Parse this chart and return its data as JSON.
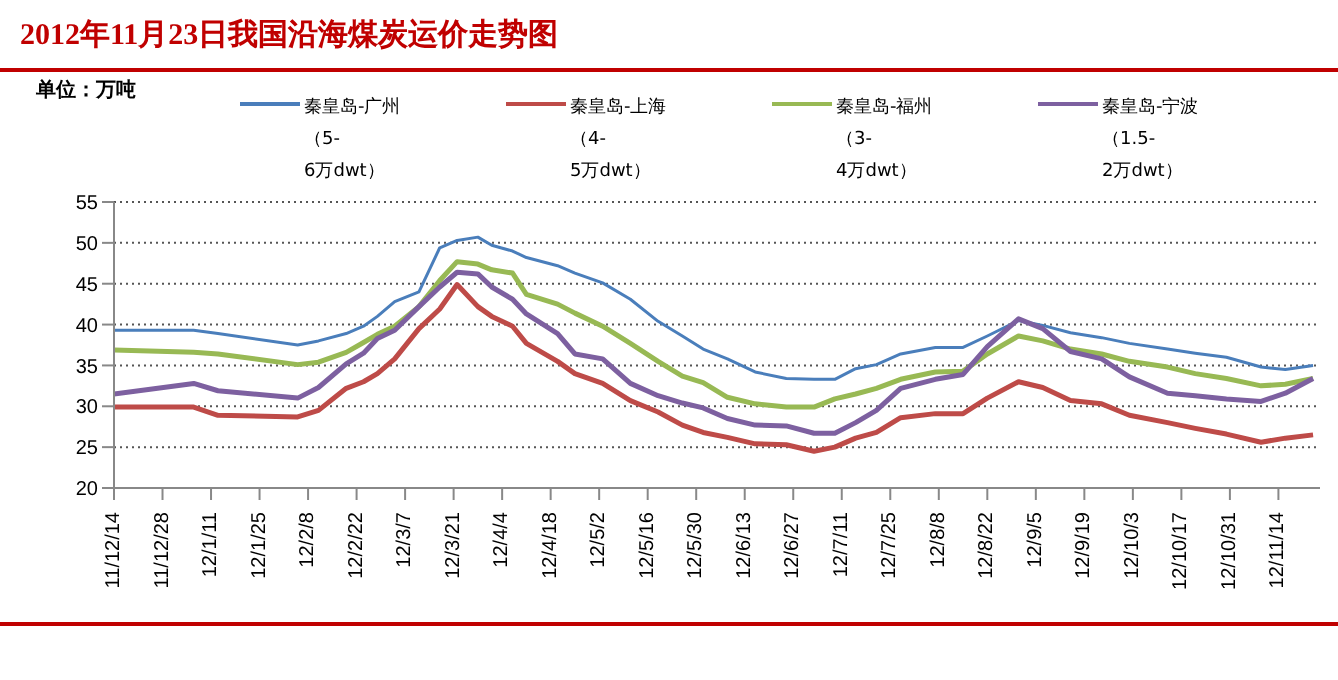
{
  "chart_data": {
    "type": "line",
    "title": "2012年11月23日我国沿海煤炭运价走势图",
    "ylabel": "单位：万吨",
    "x": [
      "2011-12-14",
      "2012-01-06",
      "2012-01-13",
      "2012-02-05",
      "2012-02-11",
      "2012-02-19",
      "2012-02-24",
      "2012-02-28",
      "2012-03-04",
      "2012-03-11",
      "2012-03-17",
      "2012-03-22",
      "2012-03-28",
      "2012-04-01",
      "2012-04-07",
      "2012-04-11",
      "2012-04-20",
      "2012-04-25",
      "2012-05-03",
      "2012-05-11",
      "2012-05-19",
      "2012-05-26",
      "2012-06-01",
      "2012-06-08",
      "2012-06-16",
      "2012-06-25",
      "2012-07-03",
      "2012-07-09",
      "2012-07-15",
      "2012-07-21",
      "2012-07-28",
      "2012-08-07",
      "2012-08-15",
      "2012-08-22",
      "2012-08-31",
      "2012-09-07",
      "2012-09-15",
      "2012-09-24",
      "2012-10-02",
      "2012-10-13",
      "2012-10-21",
      "2012-10-30",
      "2012-11-09",
      "2012-11-16",
      "2012-11-24"
    ],
    "series": [
      {
        "name": "秦皇岛-广州（5-6万dwt）",
        "color": "#4a7ebb",
        "values": [
          39.3,
          39.3,
          38.9,
          37.5,
          38.0,
          38.9,
          39.8,
          41.0,
          42.8,
          44.0,
          49.4,
          50.3,
          50.7,
          49.7,
          49.0,
          48.2,
          47.2,
          46.3,
          45.1,
          43.1,
          40.4,
          38.6,
          37.0,
          35.8,
          34.2,
          33.4,
          33.3,
          33.3,
          34.6,
          35.1,
          36.4,
          37.2,
          37.2,
          38.6,
          40.5,
          39.9,
          39.0,
          38.4,
          37.7,
          37.0,
          36.5,
          36.0,
          34.8,
          34.5,
          35.0
        ]
      },
      {
        "name": "秦皇岛-上海（4-5万dwt）",
        "color": "#be4b48",
        "values": [
          29.9,
          29.9,
          28.9,
          28.7,
          29.5,
          32.2,
          33.0,
          34.0,
          35.8,
          39.5,
          41.9,
          44.9,
          42.2,
          41.0,
          39.8,
          37.7,
          35.5,
          34.0,
          32.8,
          30.7,
          29.3,
          27.7,
          26.8,
          26.2,
          25.4,
          25.3,
          24.5,
          25.0,
          26.1,
          26.8,
          28.6,
          29.1,
          29.1,
          31.0,
          33.0,
          32.3,
          30.7,
          30.3,
          28.9,
          28.0,
          27.3,
          26.6,
          25.6,
          26.1,
          26.5
        ]
      },
      {
        "name": "秦皇岛-福州（3-4万dwt）",
        "color": "#98b954",
        "values": [
          36.9,
          36.6,
          36.4,
          35.1,
          35.4,
          36.6,
          37.8,
          38.8,
          39.8,
          42.2,
          45.4,
          47.7,
          47.4,
          46.7,
          46.3,
          43.7,
          42.5,
          41.4,
          39.8,
          37.7,
          35.5,
          33.7,
          32.9,
          31.1,
          30.3,
          29.9,
          29.9,
          30.9,
          31.5,
          32.2,
          33.3,
          34.2,
          34.3,
          36.4,
          38.6,
          38.0,
          37.0,
          36.4,
          35.5,
          34.8,
          34.0,
          33.4,
          32.5,
          32.7,
          33.4
        ]
      },
      {
        "name": "秦皇岛-宁波（1.5-2万dwt）",
        "color": "#7d60a0",
        "values": [
          31.5,
          32.8,
          31.9,
          31.0,
          32.3,
          35.2,
          36.5,
          38.3,
          39.3,
          42.2,
          44.6,
          46.4,
          46.2,
          44.6,
          43.1,
          41.3,
          38.9,
          36.4,
          35.8,
          32.8,
          31.3,
          30.4,
          29.8,
          28.5,
          27.7,
          27.6,
          26.7,
          26.7,
          28.0,
          29.5,
          32.2,
          33.3,
          33.9,
          37.3,
          40.7,
          39.5,
          36.7,
          35.8,
          33.6,
          31.6,
          31.3,
          30.9,
          30.6,
          31.6,
          33.4
        ]
      }
    ],
    "xlim": [
      "2011-12-14",
      "2012-11-26"
    ],
    "xticks": [
      {
        "value": "2011-12-14",
        "label": "11/12/14"
      },
      {
        "value": "2011-12-28",
        "label": "11/12/28"
      },
      {
        "value": "2012-01-11",
        "label": "12/1/11"
      },
      {
        "value": "2012-01-25",
        "label": "12/1/25"
      },
      {
        "value": "2012-02-08",
        "label": "12/2/8"
      },
      {
        "value": "2012-02-22",
        "label": "12/2/22"
      },
      {
        "value": "2012-03-07",
        "label": "12/3/7"
      },
      {
        "value": "2012-03-21",
        "label": "12/3/21"
      },
      {
        "value": "2012-04-04",
        "label": "12/4/4"
      },
      {
        "value": "2012-04-18",
        "label": "12/4/18"
      },
      {
        "value": "2012-05-02",
        "label": "12/5/2"
      },
      {
        "value": "2012-05-16",
        "label": "12/5/16"
      },
      {
        "value": "2012-05-30",
        "label": "12/5/30"
      },
      {
        "value": "2012-06-13",
        "label": "12/6/13"
      },
      {
        "value": "2012-06-27",
        "label": "12/6/27"
      },
      {
        "value": "2012-07-11",
        "label": "12/7/11"
      },
      {
        "value": "2012-07-25",
        "label": "12/7/25"
      },
      {
        "value": "2012-08-08",
        "label": "12/8/8"
      },
      {
        "value": "2012-08-22",
        "label": "12/8/22"
      },
      {
        "value": "2012-09-05",
        "label": "12/9/5"
      },
      {
        "value": "2012-09-19",
        "label": "12/9/19"
      },
      {
        "value": "2012-10-03",
        "label": "12/10/3"
      },
      {
        "value": "2012-10-17",
        "label": "12/10/17"
      },
      {
        "value": "2012-10-31",
        "label": "12/10/31"
      },
      {
        "value": "2012-11-14",
        "label": "12/11/14"
      }
    ],
    "ylim": [
      20,
      55
    ],
    "yticks": [
      20,
      25,
      30,
      35,
      40,
      45,
      50,
      55
    ],
    "grid": "y",
    "legend": "top",
    "marker": "none",
    "line_style": "solid"
  }
}
